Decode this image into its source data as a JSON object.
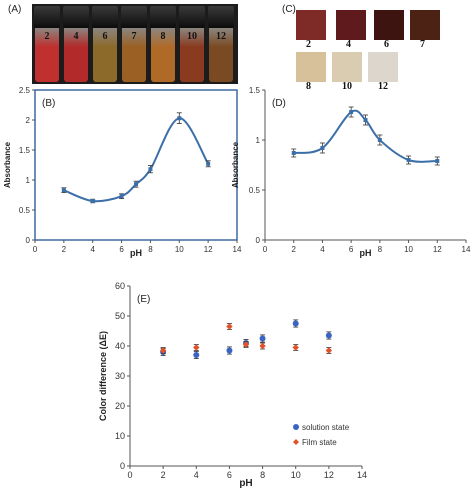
{
  "panel_a": {
    "letter": "(A)",
    "vials": [
      {
        "label": "2",
        "color": "#c0302e"
      },
      {
        "label": "4",
        "color": "#b22a29"
      },
      {
        "label": "6",
        "color": "#8c6a2a"
      },
      {
        "label": "7",
        "color": "#9a6024"
      },
      {
        "label": "8",
        "color": "#b06a28"
      },
      {
        "label": "10",
        "color": "#8a3a1e"
      },
      {
        "label": "12",
        "color": "#7a4a22"
      }
    ]
  },
  "panel_c": {
    "letter": "(C)",
    "swatches": [
      {
        "label": "2",
        "color": "#7e2a26"
      },
      {
        "label": "4",
        "color": "#5e1a1c"
      },
      {
        "label": "6",
        "color": "#3e1410"
      },
      {
        "label": "7",
        "color": "#4c2214"
      },
      {
        "label": "8",
        "color": "#d6c19a"
      },
      {
        "label": "10",
        "color": "#d9ccb0"
      },
      {
        "label": "12",
        "color": "#dcd6cc"
      }
    ]
  },
  "chart_data": [
    {
      "type": "line",
      "panel": "(B)",
      "xlabel": "pH",
      "ylabel": "Absorbance",
      "xlim": [
        0,
        14
      ],
      "ylim": [
        0,
        2.5
      ],
      "xticks": [
        "0",
        "2",
        "4",
        "6",
        "8",
        "10",
        "12",
        "14"
      ],
      "yticks": [
        "0",
        "0.5",
        "1",
        "1.5",
        "2",
        "2.5"
      ],
      "grid": false,
      "series": [
        {
          "x": [
            2,
            4,
            6,
            7,
            8,
            10,
            12
          ],
          "y": [
            0.83,
            0.65,
            0.73,
            0.93,
            1.18,
            2.03,
            1.27
          ],
          "err": [
            0.04,
            0.03,
            0.04,
            0.05,
            0.06,
            0.09,
            0.05
          ],
          "color": "#3c6fa8"
        }
      ]
    },
    {
      "type": "line",
      "panel": "(D)",
      "xlabel": "pH",
      "ylabel": "Absorbance",
      "xlim": [
        0,
        14
      ],
      "ylim": [
        0,
        1.5
      ],
      "xticks": [
        "0",
        "2",
        "4",
        "6",
        "8",
        "10",
        "12",
        "14"
      ],
      "yticks": [
        "0",
        "0.5",
        "1",
        "1.5"
      ],
      "grid": false,
      "series": [
        {
          "x": [
            2,
            4,
            6,
            7,
            8,
            10,
            12
          ],
          "y": [
            0.87,
            0.92,
            1.28,
            1.2,
            1.0,
            0.8,
            0.79
          ],
          "err": [
            0.04,
            0.05,
            0.05,
            0.05,
            0.05,
            0.04,
            0.04
          ],
          "color": "#3c6fa8"
        }
      ]
    },
    {
      "type": "scatter",
      "panel": "(E)",
      "xlabel": "pH",
      "ylabel": "Color difference (ΔE)",
      "xlim": [
        0,
        14
      ],
      "ylim": [
        0,
        60
      ],
      "xticks": [
        "0",
        "2",
        "4",
        "6",
        "8",
        "10",
        "12",
        "14"
      ],
      "yticks": [
        "0",
        "10",
        "20",
        "30",
        "40",
        "50",
        "60"
      ],
      "grid": false,
      "legend": "bottom-right",
      "series": [
        {
          "name": "solution state",
          "marker": "circle",
          "color": "#3a63c4",
          "x": [
            2,
            4,
            6,
            7,
            8,
            10,
            12
          ],
          "y": [
            38,
            37,
            38.5,
            41,
            42.5,
            47.5,
            43.5
          ],
          "err": [
            1.2,
            1.2,
            1.2,
            1.2,
            1.2,
            1.2,
            1.2
          ]
        },
        {
          "name": "Film state",
          "marker": "diamond",
          "color": "#e0532a",
          "x": [
            2,
            4,
            6,
            7,
            8,
            10,
            12
          ],
          "y": [
            38.5,
            39.5,
            46.5,
            40.5,
            40,
            39.5,
            38.5
          ],
          "err": [
            1,
            1,
            1,
            1,
            1,
            1,
            1
          ]
        }
      ]
    }
  ]
}
